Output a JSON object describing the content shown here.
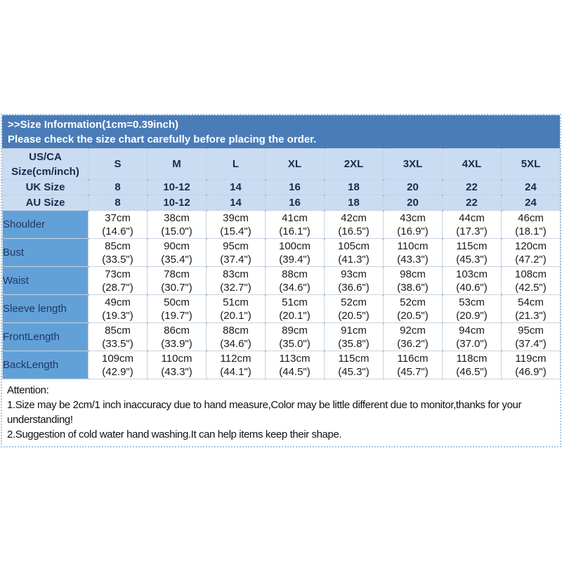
{
  "banner": {
    "title": ">>Size Information(1cm=0.39inch)",
    "subtitle": "Please check the size chart carefully before placing the order."
  },
  "size_table": {
    "corner_header": [
      "US/CA",
      "Size(cm/inch)"
    ],
    "size_columns": [
      "S",
      "M",
      "L",
      "XL",
      "2XL",
      "3XL",
      "4XL",
      "5XL"
    ],
    "size_rows": [
      {
        "label": "UK Size",
        "values": [
          "8",
          "10-12",
          "14",
          "16",
          "18",
          "20",
          "22",
          "24"
        ]
      },
      {
        "label": "AU Size",
        "values": [
          "8",
          "10-12",
          "14",
          "16",
          "18",
          "20",
          "22",
          "24"
        ]
      }
    ],
    "measurement_rows": [
      {
        "label": "Shoulder",
        "cells": [
          [
            "37cm",
            "(14.6\")"
          ],
          [
            "38cm",
            "(15.0\")"
          ],
          [
            "39cm",
            "(15.4\")"
          ],
          [
            "41cm",
            "(16.1\")"
          ],
          [
            "42cm",
            "(16.5\")"
          ],
          [
            "43cm",
            "(16.9\")"
          ],
          [
            "44cm",
            "(17.3\")"
          ],
          [
            "46cm",
            "(18.1\")"
          ]
        ]
      },
      {
        "label": "Bust",
        "cells": [
          [
            "85cm",
            "(33.5\")"
          ],
          [
            "90cm",
            "(35.4\")"
          ],
          [
            "95cm",
            "(37.4\")"
          ],
          [
            "100cm",
            "(39.4\")"
          ],
          [
            "105cm",
            "(41.3\")"
          ],
          [
            "110cm",
            "(43.3\")"
          ],
          [
            "115cm",
            "(45.3\")"
          ],
          [
            "120cm",
            "(47.2\")"
          ]
        ]
      },
      {
        "label": "Waist",
        "cells": [
          [
            "73cm",
            "(28.7\")"
          ],
          [
            "78cm",
            "(30.7\")"
          ],
          [
            "83cm",
            "(32.7\")"
          ],
          [
            "88cm",
            "(34.6\")"
          ],
          [
            "93cm",
            "(36.6\")"
          ],
          [
            "98cm",
            "(38.6\")"
          ],
          [
            "103cm",
            "(40.6\")"
          ],
          [
            "108cm",
            "(42.5\")"
          ]
        ]
      },
      {
        "label": "Sleeve length",
        "cells": [
          [
            "49cm",
            "(19.3\")"
          ],
          [
            "50cm",
            "(19.7\")"
          ],
          [
            "51cm",
            "(20.1\")"
          ],
          [
            "51cm",
            "(20.1\")"
          ],
          [
            "52cm",
            "(20.5\")"
          ],
          [
            "52cm",
            "(20.5\")"
          ],
          [
            "53cm",
            "(20.9\")"
          ],
          [
            "54cm",
            "(21.3\")"
          ]
        ]
      },
      {
        "label": "FrontLength",
        "cells": [
          [
            "85cm",
            "(33.5\")"
          ],
          [
            "86cm",
            "(33.9\")"
          ],
          [
            "88cm",
            "(34.6\")"
          ],
          [
            "89cm",
            "(35.0\")"
          ],
          [
            "91cm",
            "(35.8\")"
          ],
          [
            "92cm",
            "(36.2\")"
          ],
          [
            "94cm",
            "(37.0\")"
          ],
          [
            "95cm",
            "(37.4\")"
          ]
        ]
      },
      {
        "label": "BackLength",
        "cells": [
          [
            "109cm",
            "(42.9\")"
          ],
          [
            "110cm",
            "(43.3\")"
          ],
          [
            "112cm",
            "(44.1\")"
          ],
          [
            "113cm",
            "(44.5\")"
          ],
          [
            "115cm",
            "(45.3\")"
          ],
          [
            "116cm",
            "(45.7\")"
          ],
          [
            "118cm",
            "(46.5\")"
          ],
          [
            "119cm",
            "(46.9\")"
          ]
        ]
      }
    ]
  },
  "attention": {
    "heading": "Attention:",
    "note1": "1.Size may be 2cm/1 inch inaccuracy due to hand measure,Color may be little different due to monitor,thanks for your understanding!",
    "note2": "2.Suggestion of cold water hand washing.It can help items keep their shape."
  },
  "colors": {
    "banner_bg": "#4a7cb8",
    "header_bg": "#c9dcf2",
    "label_bg": "#62a1d8",
    "header_text": "#1b2a4a",
    "label_text": "#1f3864",
    "grid_line": "#8fa8c0",
    "outer_border": "#a5c7e6"
  }
}
